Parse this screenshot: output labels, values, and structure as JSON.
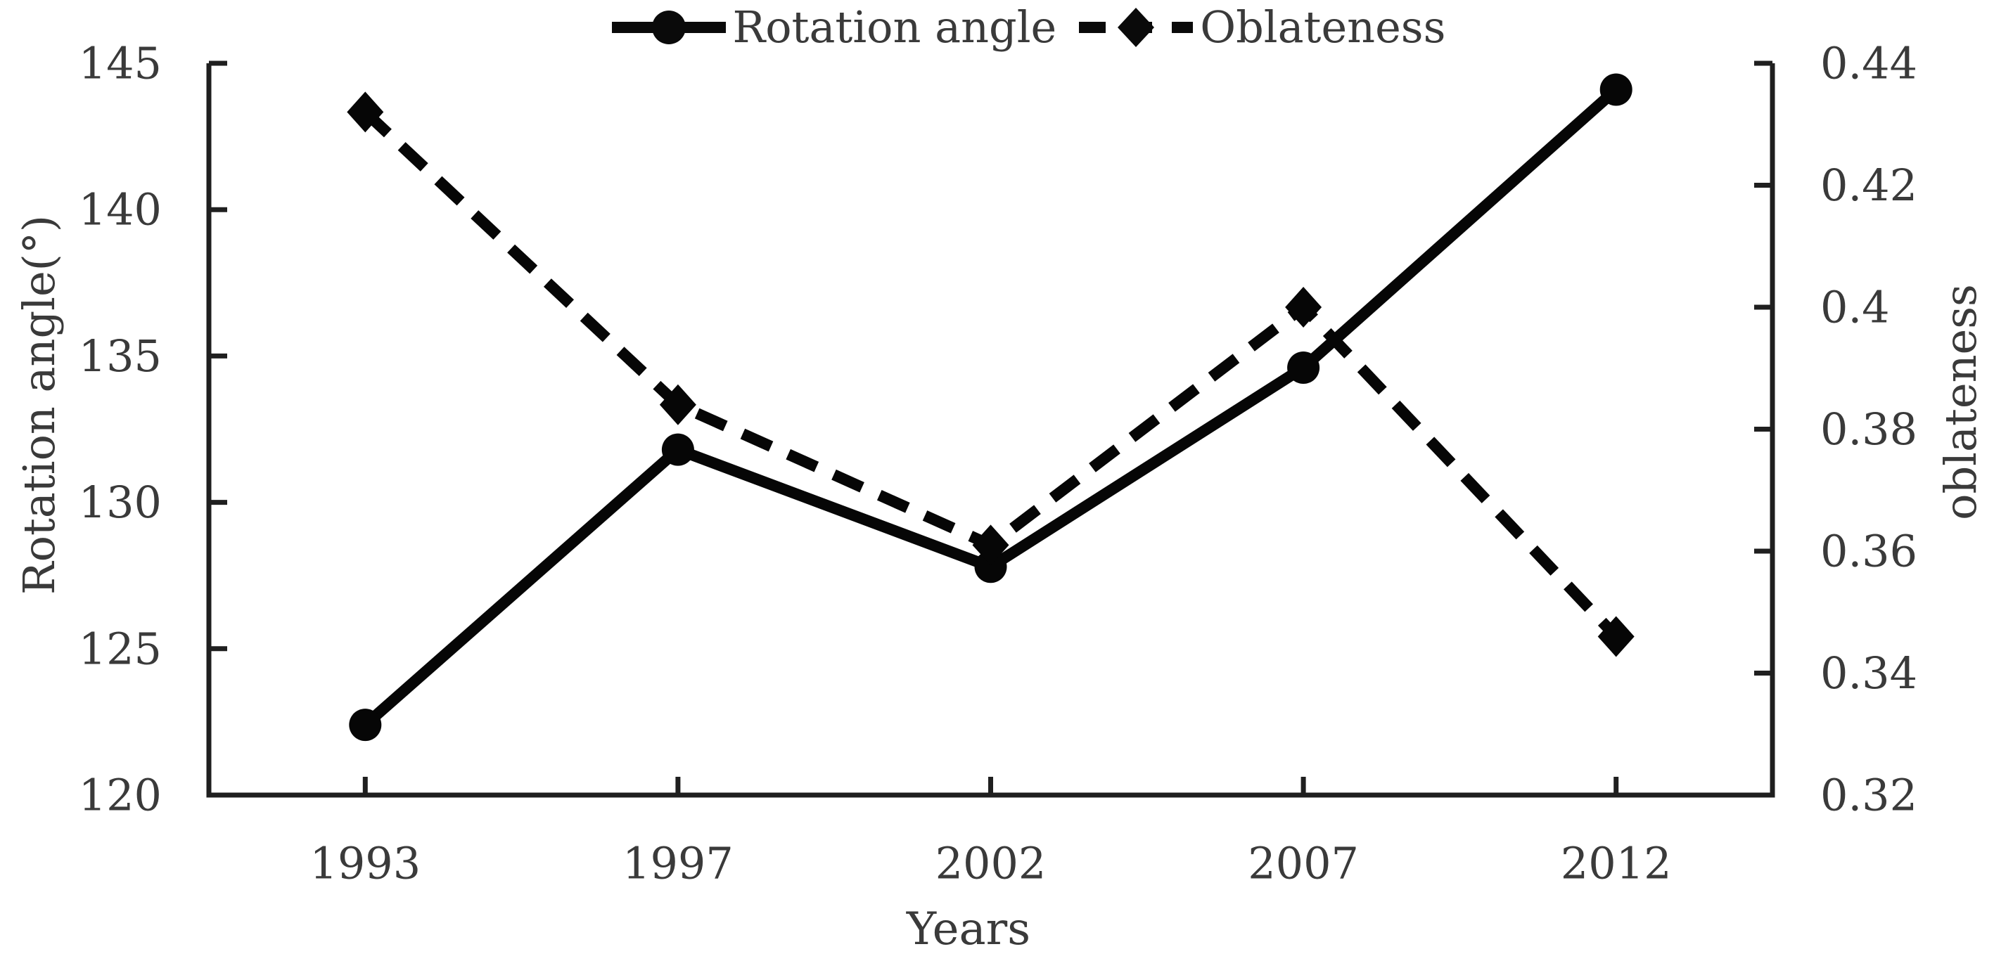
{
  "chart_data": {
    "type": "line",
    "categories": [
      "1993",
      "1997",
      "2002",
      "2007",
      "2012"
    ],
    "series": [
      {
        "name": "Rotation angle",
        "axis": "left",
        "line_style": "solid",
        "marker": "circle",
        "color": "#060606",
        "values": [
          122.4,
          131.8,
          127.8,
          134.6,
          144.1
        ]
      },
      {
        "name": "Oblateness",
        "axis": "right",
        "line_style": "dashed",
        "marker": "diamond",
        "color": "#060606",
        "values": [
          0.432,
          0.384,
          0.361,
          0.4,
          0.346
        ]
      }
    ],
    "xlabel": "Years",
    "left_axis": {
      "label": "Rotation angle(°)",
      "min": 120,
      "max": 145,
      "step": 5,
      "ticks": [
        "145",
        "140",
        "135",
        "130",
        "125",
        "120"
      ]
    },
    "right_axis": {
      "label": "oblateness",
      "min": 0.32,
      "max": 0.44,
      "step": 0.02,
      "ticks": [
        "0.44",
        "0.42",
        "0.4",
        "0.38",
        "0.36",
        "0.34",
        "0.32"
      ]
    },
    "legend_position": "top-center",
    "grid": "off",
    "colors": {
      "line": "#060606",
      "axis": "#1f1f1f",
      "text": "#3a3a3a",
      "background": "#ffffff"
    }
  }
}
